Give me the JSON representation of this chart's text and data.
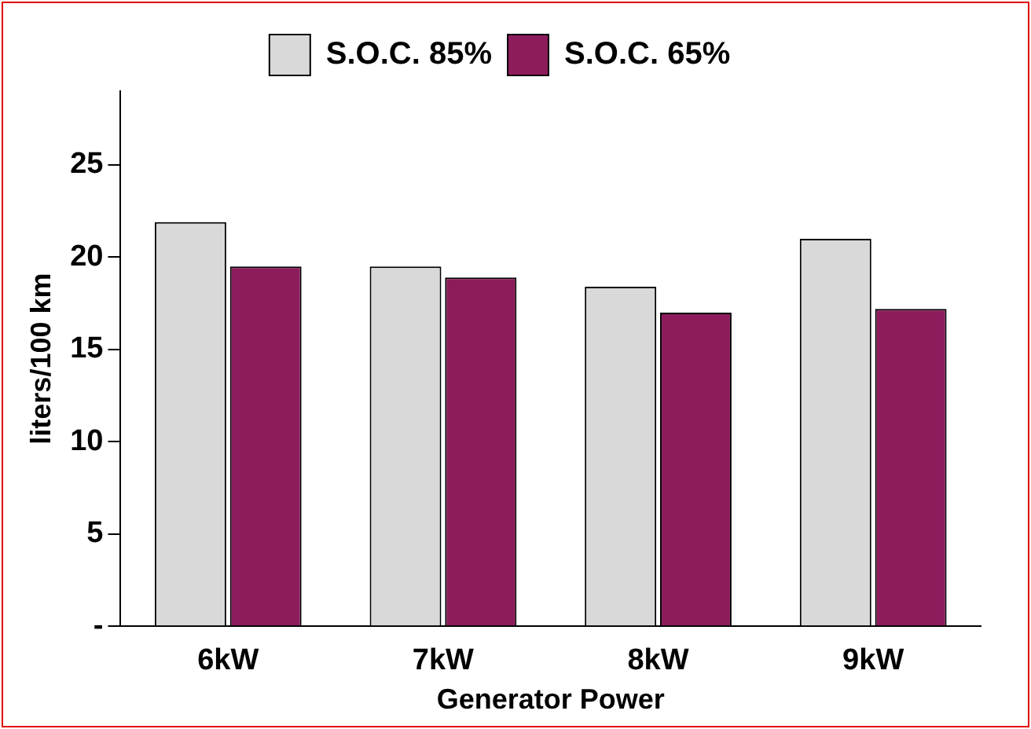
{
  "chart_data": {
    "type": "bar",
    "xlabel": "Generator Power",
    "ylabel": "liters/100 km",
    "categories": [
      "6kW",
      "7kW",
      "8kW",
      "9kW"
    ],
    "series": [
      {
        "name": "S.O.C. 85%",
        "color": "#d9d9d9",
        "values": [
          21.9,
          19.5,
          18.4,
          21.0
        ]
      },
      {
        "name": "S.O.C. 65%",
        "color": "#8c1c5c",
        "values": [
          19.5,
          18.9,
          17.0,
          17.2
        ]
      }
    ],
    "ylim": [
      0,
      29
    ],
    "yticks": [
      {
        "value": 0,
        "label": "-"
      },
      5,
      10,
      15,
      20,
      25
    ],
    "grid": false,
    "legend": "top"
  }
}
